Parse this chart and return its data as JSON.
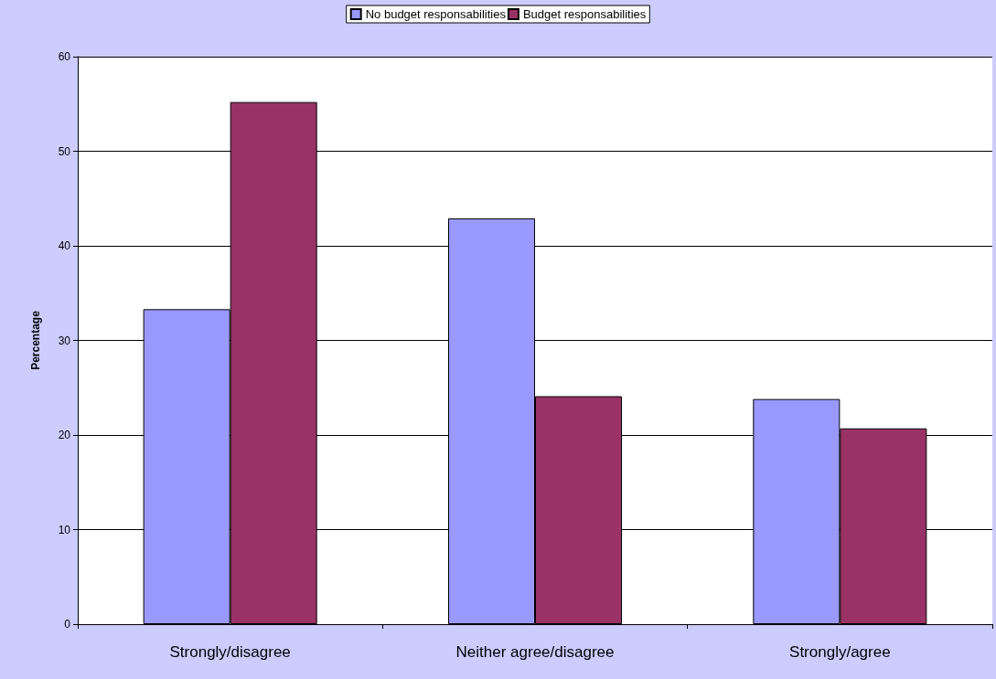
{
  "chart_data": {
    "type": "bar",
    "ylabel": "Percentage",
    "categories": [
      "Strongly/disagree",
      "Neither agree/disagree",
      "Strongly/agree"
    ],
    "series": [
      {
        "name": "No budget responsabilities",
        "color": "#9999ff",
        "values": [
          33.3,
          42.9,
          23.8
        ]
      },
      {
        "name": "Budget responsabilities",
        "color": "#993366",
        "values": [
          55.2,
          24.1,
          20.7
        ]
      }
    ],
    "ylim": [
      0,
      60
    ],
    "yticks": [
      0,
      10,
      20,
      30,
      40,
      50,
      60
    ],
    "grid": "y",
    "legend": "top"
  }
}
